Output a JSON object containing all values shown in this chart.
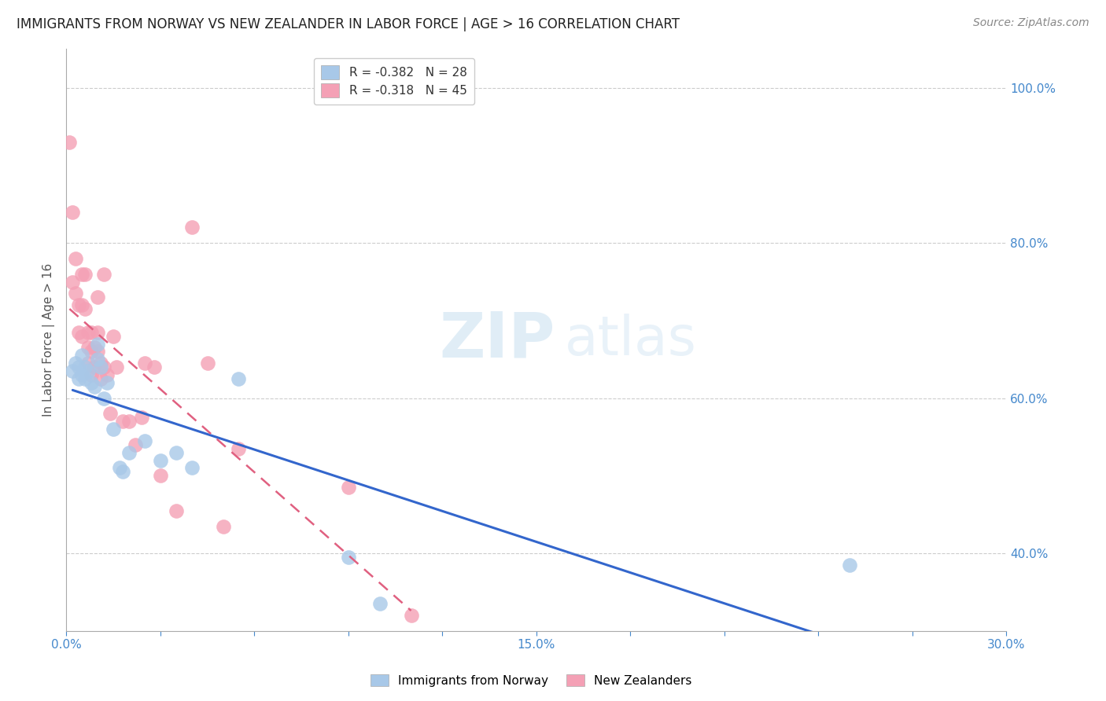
{
  "title": "IMMIGRANTS FROM NORWAY VS NEW ZEALANDER IN LABOR FORCE | AGE > 16 CORRELATION CHART",
  "source": "Source: ZipAtlas.com",
  "ylabel": "In Labor Force | Age > 16",
  "xlim": [
    0.0,
    0.3
  ],
  "ylim": [
    0.3,
    1.05
  ],
  "xticks": [
    0.0,
    0.03,
    0.06,
    0.09,
    0.12,
    0.15,
    0.18,
    0.21,
    0.24,
    0.27,
    0.3
  ],
  "xtick_labels": [
    "0.0%",
    "",
    "",
    "",
    "",
    "15.0%",
    "",
    "",
    "",
    "",
    "30.0%"
  ],
  "yticks": [
    0.4,
    0.6,
    0.8,
    1.0
  ],
  "ytick_labels": [
    "40.0%",
    "60.0%",
    "80.0%",
    "100.0%"
  ],
  "norway_R": -0.382,
  "norway_N": 28,
  "nz_R": -0.318,
  "nz_N": 45,
  "norway_color": "#a8c8e8",
  "nz_color": "#f4a0b5",
  "norway_line_color": "#3366cc",
  "nz_line_color": "#e06080",
  "watermark_zip": "ZIP",
  "watermark_atlas": "atlas",
  "norway_x": [
    0.002,
    0.003,
    0.004,
    0.004,
    0.005,
    0.005,
    0.006,
    0.006,
    0.007,
    0.008,
    0.009,
    0.01,
    0.01,
    0.011,
    0.012,
    0.013,
    0.015,
    0.017,
    0.018,
    0.02,
    0.025,
    0.03,
    0.035,
    0.04,
    0.055,
    0.09,
    0.1,
    0.25
  ],
  "norway_y": [
    0.635,
    0.645,
    0.64,
    0.625,
    0.63,
    0.655,
    0.64,
    0.625,
    0.635,
    0.62,
    0.615,
    0.67,
    0.65,
    0.64,
    0.6,
    0.62,
    0.56,
    0.51,
    0.505,
    0.53,
    0.545,
    0.52,
    0.53,
    0.51,
    0.625,
    0.395,
    0.335,
    0.385
  ],
  "nz_x": [
    0.001,
    0.002,
    0.002,
    0.003,
    0.003,
    0.004,
    0.004,
    0.005,
    0.005,
    0.005,
    0.006,
    0.006,
    0.007,
    0.007,
    0.007,
    0.008,
    0.008,
    0.008,
    0.009,
    0.009,
    0.01,
    0.01,
    0.01,
    0.011,
    0.011,
    0.012,
    0.012,
    0.013,
    0.014,
    0.015,
    0.016,
    0.018,
    0.02,
    0.022,
    0.024,
    0.025,
    0.028,
    0.03,
    0.035,
    0.04,
    0.045,
    0.05,
    0.055,
    0.09,
    0.11
  ],
  "nz_y": [
    0.93,
    0.84,
    0.75,
    0.78,
    0.735,
    0.72,
    0.685,
    0.76,
    0.72,
    0.68,
    0.76,
    0.715,
    0.685,
    0.665,
    0.645,
    0.685,
    0.66,
    0.63,
    0.665,
    0.64,
    0.73,
    0.685,
    0.66,
    0.645,
    0.625,
    0.76,
    0.64,
    0.63,
    0.58,
    0.68,
    0.64,
    0.57,
    0.57,
    0.54,
    0.575,
    0.645,
    0.64,
    0.5,
    0.455,
    0.82,
    0.645,
    0.435,
    0.535,
    0.485,
    0.32
  ]
}
